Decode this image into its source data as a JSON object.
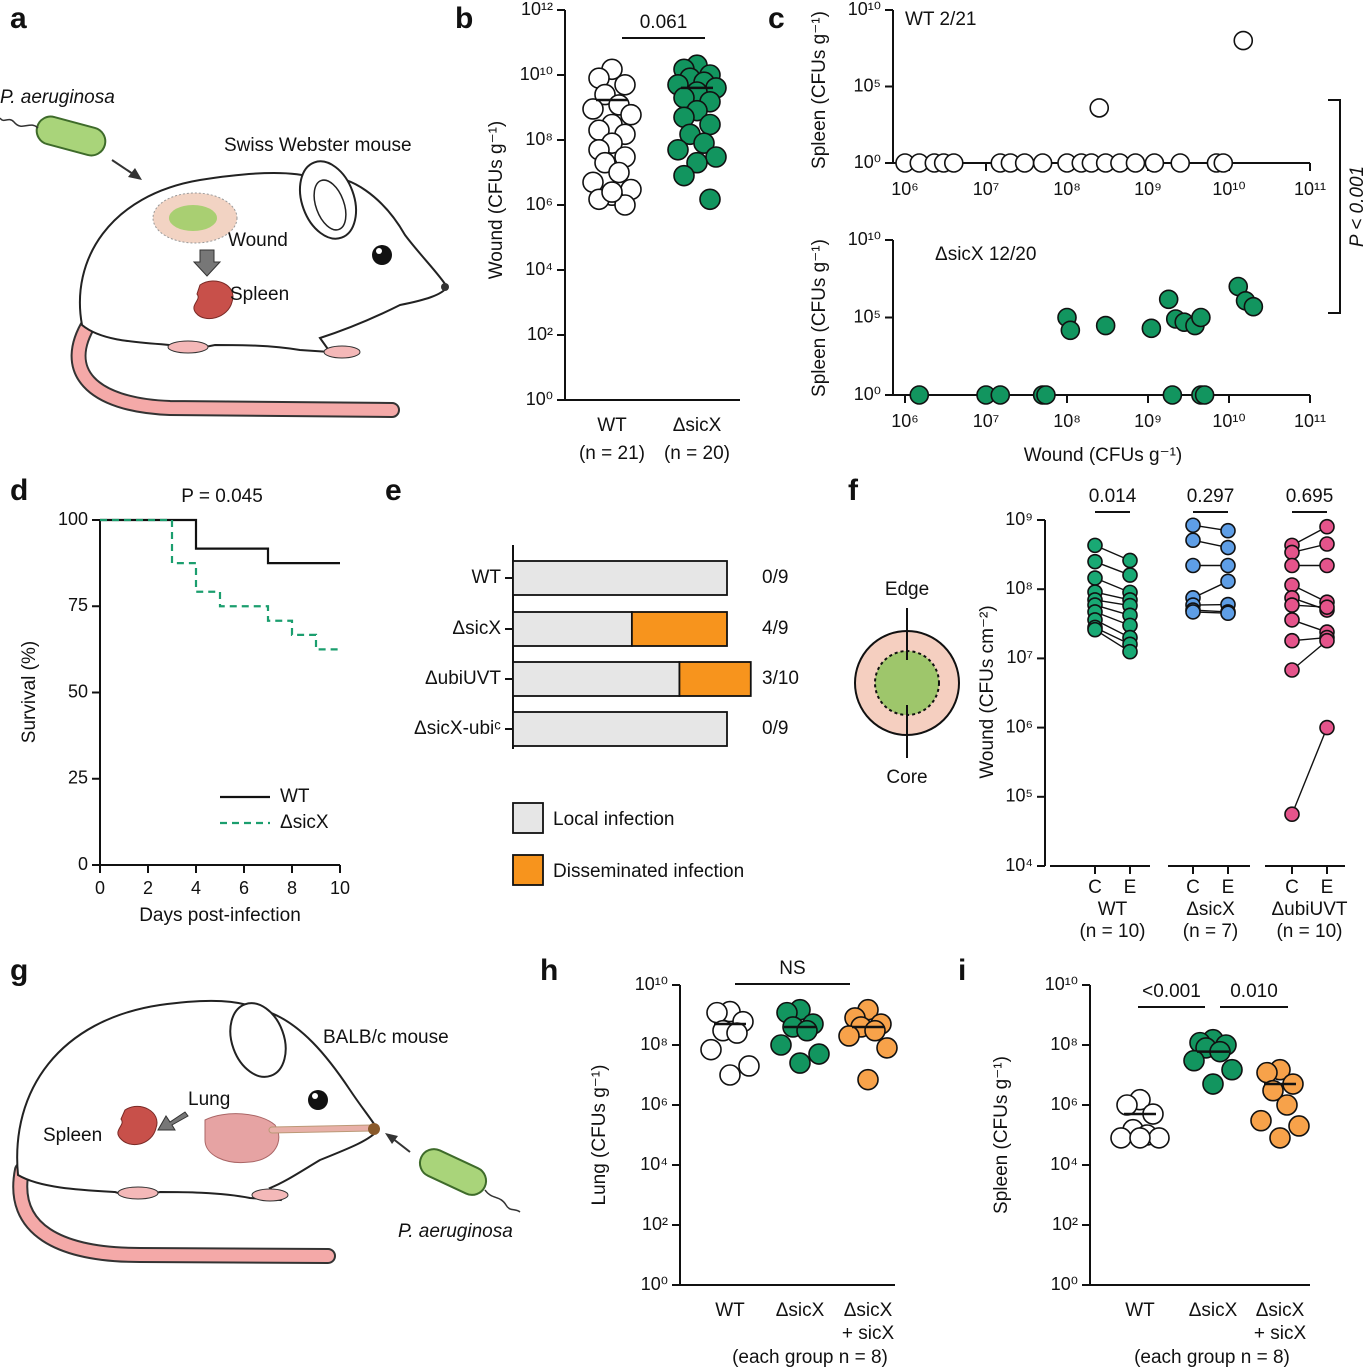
{
  "illustration_a": {
    "panel": "a",
    "organism": "P. aeruginosa",
    "mouse": "Swiss Webster mouse",
    "wound": "Wound",
    "spleen": "Spleen"
  },
  "diagram_f": {
    "edge": "Edge",
    "core": "Core"
  },
  "illustration_g": {
    "panel": "g",
    "organism": "P. aeruginosa",
    "mouse": "BALB/c mouse",
    "lung": "Lung",
    "spleen": "Spleen"
  },
  "chart_data": [
    {
      "panel": "b",
      "type": "strip",
      "ylabel": "Wound (CFUs g⁻¹)",
      "categories": [
        [
          "WT"
        ],
        [
          "ΔsicX"
        ]
      ],
      "n_labels": [
        "(n = 21)",
        "(n = 20)"
      ],
      "colors": [
        "#ffffff",
        "#12955f"
      ],
      "values": [
        [
          15000000000.0,
          8000000000.0,
          5000000000.0,
          2500000000.0,
          1200000000.0,
          900000000.0,
          600000000.0,
          300000000.0,
          200000000.0,
          150000000.0,
          80000000.0,
          50000000.0,
          30000000.0,
          20000000.0,
          10000000.0,
          5000000.0,
          3000000.0,
          2000000.0,
          1500000.0,
          1000000.0,
          2500000.0
        ],
        [
          20000000000.0,
          15000000000.0,
          10000000000.0,
          8000000000.0,
          6000000000.0,
          5000000000.0,
          4000000000.0,
          3000000000.0,
          2000000000.0,
          1500000000.0,
          800000000.0,
          500000000.0,
          300000000.0,
          150000000.0,
          80000000.0,
          50000000.0,
          30000000.0,
          20000000.0,
          8000000.0,
          1500000.0
        ]
      ],
      "means": [
        1700000000.0,
        4000000000.0
      ],
      "comparison_labels": [
        "0.061"
      ],
      "ylog": true,
      "ylim": [
        1,
        1000000000000.0
      ],
      "yticks": [
        {
          "value": 1,
          "label": "10⁰"
        },
        {
          "value": 100.0,
          "label": "10²"
        },
        {
          "value": 10000.0,
          "label": "10⁴"
        },
        {
          "value": 1000000.0,
          "label": "10⁶"
        },
        {
          "value": 100000000.0,
          "label": "10⁸"
        },
        {
          "value": 10000000000.0,
          "label": "10¹⁰"
        },
        {
          "value": 1000000000000.0,
          "label": "10¹²"
        }
      ]
    },
    {
      "panel": "c",
      "type": "scatter",
      "label": "WT 2/21",
      "ylabel": "Spleen (CFUs g⁻¹)",
      "color": "#ffffff",
      "x": [
        1000000.0,
        1500000.0,
        2300000.0,
        3000000.0,
        4000000.0,
        15000000.0,
        20000000.0,
        30000000.0,
        50000000.0,
        100000000.0,
        150000000.0,
        200000000.0,
        300000000.0,
        450000000.0,
        700000000.0,
        1200000000.0,
        2500000000.0,
        7000000000.0,
        8500000000.0,
        250000000.0,
        15000000000.0
      ],
      "values": [
        1,
        1,
        1,
        1,
        1,
        1,
        1,
        1,
        1,
        1,
        1,
        1,
        1,
        1,
        1,
        1,
        1,
        1,
        1,
        4000.0,
        100000000.0
      ],
      "bracket_label": "P < 0.001",
      "xlog": true,
      "xlim": [
        1000000.0,
        100000000000.0
      ],
      "xticks": [
        {
          "value": 1000000.0,
          "label": "10⁶"
        },
        {
          "value": 10000000.0,
          "label": "10⁷"
        },
        {
          "value": 100000000.0,
          "label": "10⁸"
        },
        {
          "value": 1000000000.0,
          "label": "10⁹"
        },
        {
          "value": 10000000000.0,
          "label": "10¹⁰"
        },
        {
          "value": 100000000000.0,
          "label": "10¹¹"
        }
      ],
      "ylog": true,
      "ylim": [
        1,
        10000000000.0
      ],
      "yticks": [
        {
          "value": 1,
          "label": "10⁰"
        },
        {
          "value": 100000.0,
          "label": "10⁵"
        },
        {
          "value": 10000000000.0,
          "label": "10¹⁰"
        }
      ]
    },
    {
      "type": "scatter",
      "label": "ΔsicX 12/20",
      "ylabel": "Spleen (CFUs g⁻¹)",
      "xlabel": "Wound (CFUs g⁻¹)",
      "color": "#12955f",
      "x": [
        1500000.0,
        10000000.0,
        15000000.0,
        50000000.0,
        55000000.0,
        2000000000.0,
        4500000000.0,
        5000000000.0,
        100000000.0,
        110000000.0,
        300000000.0,
        1100000000.0,
        1800000000.0,
        2200000000.0,
        2800000000.0,
        3800000000.0,
        4500000000.0,
        13000000000.0,
        16000000000.0,
        20000000000.0
      ],
      "values": [
        1,
        1,
        1,
        1,
        1,
        1,
        1,
        1,
        100000.0,
        15000.0,
        30000.0,
        20000.0,
        1500000.0,
        80000.0,
        50000.0,
        30000.0,
        100000.0,
        10000000.0,
        1200000.0,
        500000.0
      ],
      "xlog": true,
      "xlim": [
        1000000.0,
        100000000000.0
      ],
      "xticks": [
        {
          "value": 1000000.0,
          "label": "10⁶"
        },
        {
          "value": 10000000.0,
          "label": "10⁷"
        },
        {
          "value": 100000000.0,
          "label": "10⁸"
        },
        {
          "value": 1000000000.0,
          "label": "10⁹"
        },
        {
          "value": 10000000000.0,
          "label": "10¹⁰"
        },
        {
          "value": 100000000000.0,
          "label": "10¹¹"
        }
      ],
      "ylog": true,
      "ylim": [
        1,
        10000000000.0
      ],
      "yticks": [
        {
          "value": 1,
          "label": "10⁰"
        },
        {
          "value": 100000.0,
          "label": "10⁵"
        },
        {
          "value": 10000000000.0,
          "label": "10¹⁰"
        }
      ]
    },
    {
      "panel": "d",
      "type": "line",
      "ylabel": "Survival (%)",
      "xlabel": "Days post-infection",
      "annotation": "P = 0.045",
      "series": [
        {
          "name": "WT",
          "color": "#111111",
          "dashed": false,
          "x": [
            0,
            4,
            4,
            7,
            7,
            10
          ],
          "values": [
            100,
            100,
            91.7,
            91.7,
            87.5,
            87.5
          ]
        },
        {
          "name": "ΔsicX",
          "color": "#1b9e6e",
          "dashed": true,
          "x": [
            0,
            3,
            3,
            4,
            4,
            5,
            5,
            7,
            7,
            8,
            8,
            9,
            9,
            10
          ],
          "values": [
            100,
            100,
            87.5,
            87.5,
            79.2,
            79.2,
            75,
            75,
            70.8,
            70.8,
            66.7,
            66.7,
            62.5,
            62.5
          ]
        }
      ],
      "xlim": [
        0,
        10
      ],
      "xticks": [
        0,
        2,
        4,
        6,
        8,
        10
      ],
      "ylim": [
        0,
        100
      ],
      "yticks": [
        0,
        25,
        50,
        75,
        100
      ]
    },
    {
      "panel": "e",
      "type": "bar",
      "orientation": "horizontal",
      "stacked": true,
      "categories": [
        "WT",
        "ΔsicX",
        "ΔubiUVT",
        "ΔsicX-ubiᶜ"
      ],
      "series": [
        {
          "name": "Local infection",
          "color": "#e6e6e6",
          "values": [
            9,
            5,
            7,
            9
          ]
        },
        {
          "name": "Disseminated infection",
          "color": "#f7941d",
          "values": [
            0,
            4,
            3,
            0
          ]
        }
      ],
      "ratio_labels": [
        "0/9",
        "4/9",
        "3/10",
        "0/9"
      ]
    },
    {
      "panel": "f",
      "type": "paired",
      "ylabel": "Wound (CFUs cm⁻²)",
      "conditions": [
        "C",
        "E"
      ],
      "series": [
        {
          "name": "WT",
          "n_label": "(n = 10)",
          "color": "#19a974",
          "core": [
            430000000.0,
            250000000.0,
            145000000.0,
            91000000.0,
            70000000.0,
            59000000.0,
            47000000.0,
            36000000.0,
            28000000.0,
            26000000.0
          ],
          "edge": [
            260000000.0,
            160000000.0,
            90000000.0,
            70000000.0,
            58000000.0,
            42000000.0,
            30000000.0,
            20000000.0,
            16000000.0,
            12500000.0
          ]
        },
        {
          "name": "ΔsicX",
          "n_label": "(n = 7)",
          "color": "#5e9ee6",
          "core": [
            840000000.0,
            510000000.0,
            220000000.0,
            75000000.0,
            59000000.0,
            50000000.0,
            47000000.0
          ],
          "edge": [
            700000000.0,
            400000000.0,
            220000000.0,
            130000000.0,
            60000000.0,
            47000000.0,
            45000000.0
          ]
        },
        {
          "name": "ΔubiUVT",
          "n_label": "(n = 10)",
          "color": "#e5548b",
          "core": [
            430000000.0,
            340000000.0,
            220000000.0,
            115000000.0,
            75000000.0,
            59000000.0,
            36000000.0,
            18000000.0,
            6800000.0,
            56000.0
          ],
          "edge": [
            800000000.0,
            450000000.0,
            220000000.0,
            65000000.0,
            50000000.0,
            55000000.0,
            24000000.0,
            20000000.0,
            18000000.0,
            1000000.0
          ]
        }
      ],
      "comparison_labels": [
        "0.014",
        "0.297",
        "0.695"
      ],
      "ylog": true,
      "ylim": [
        10000.0,
        1000000000.0
      ],
      "yticks": [
        {
          "value": 10000.0,
          "label": "10⁴"
        },
        {
          "value": 100000.0,
          "label": "10⁵"
        },
        {
          "value": 1000000.0,
          "label": "10⁶"
        },
        {
          "value": 10000000.0,
          "label": "10⁷"
        },
        {
          "value": 100000000.0,
          "label": "10⁸"
        },
        {
          "value": 1000000000.0,
          "label": "10⁹"
        }
      ]
    },
    {
      "panel": "h",
      "type": "strip",
      "ylabel": "Lung (CFUs g⁻¹)",
      "categories": [
        [
          "WT"
        ],
        [
          "ΔsicX"
        ],
        [
          "ΔsicX",
          "+ sicX"
        ]
      ],
      "footnote": "(each group n = 8)",
      "colors": [
        "#ffffff",
        "#12955f",
        "#f7a24a"
      ],
      "values": [
        [
          1300000000.0,
          1200000000.0,
          600000000.0,
          300000000.0,
          250000000.0,
          70000000.0,
          20000000.0,
          10000000.0
        ],
        [
          1500000000.0,
          1200000000.0,
          500000000.0,
          400000000.0,
          300000000.0,
          100000000.0,
          50000000.0,
          25000000.0
        ],
        [
          1500000000.0,
          800000000.0,
          500000000.0,
          400000000.0,
          300000000.0,
          200000000.0,
          80000000.0,
          7000000.0
        ]
      ],
      "means": [
        500000000.0,
        400000000.0,
        400000000.0
      ],
      "comparison_labels": [
        "NS"
      ],
      "ylog": true,
      "ylim": [
        1,
        10000000000.0
      ],
      "yticks": [
        {
          "value": 1,
          "label": "10⁰"
        },
        {
          "value": 100.0,
          "label": "10²"
        },
        {
          "value": 10000.0,
          "label": "10⁴"
        },
        {
          "value": 1000000.0,
          "label": "10⁶"
        },
        {
          "value": 100000000.0,
          "label": "10⁸"
        },
        {
          "value": 10000000000.0,
          "label": "10¹⁰"
        }
      ]
    },
    {
      "panel": "i",
      "type": "strip",
      "ylabel": "Spleen (CFUs g⁻¹)",
      "categories": [
        [
          "WT"
        ],
        [
          "ΔsicX"
        ],
        [
          "ΔsicX",
          "+ sicX"
        ]
      ],
      "footnote": "(each group n = 8)",
      "colors": [
        "#ffffff",
        "#12955f",
        "#f7a24a"
      ],
      "values": [
        [
          1500000.0,
          1000000.0,
          500000.0,
          150000.0,
          100000.0,
          80000.0,
          80000.0,
          80000.0
        ],
        [
          150000000.0,
          120000000.0,
          100000000.0,
          80000000.0,
          60000000.0,
          30000000.0,
          15000000.0,
          5000000.0
        ],
        [
          15000000.0,
          12000000.0,
          5000000.0,
          3000000.0,
          1000000.0,
          300000.0,
          200000.0,
          80000.0
        ]
      ],
      "means": [
        500000.0,
        60000000.0,
        5000000.0
      ],
      "comparison_labels": [
        "<0.001",
        "0.010"
      ],
      "ylog": true,
      "ylim": [
        1,
        10000000000.0
      ],
      "yticks": [
        {
          "value": 1,
          "label": "10⁰"
        },
        {
          "value": 100.0,
          "label": "10²"
        },
        {
          "value": 10000.0,
          "label": "10⁴"
        },
        {
          "value": 1000000.0,
          "label": "10⁶"
        },
        {
          "value": 100000000.0,
          "label": "10⁸"
        },
        {
          "value": 10000000000.0,
          "label": "10¹⁰"
        }
      ]
    }
  ]
}
